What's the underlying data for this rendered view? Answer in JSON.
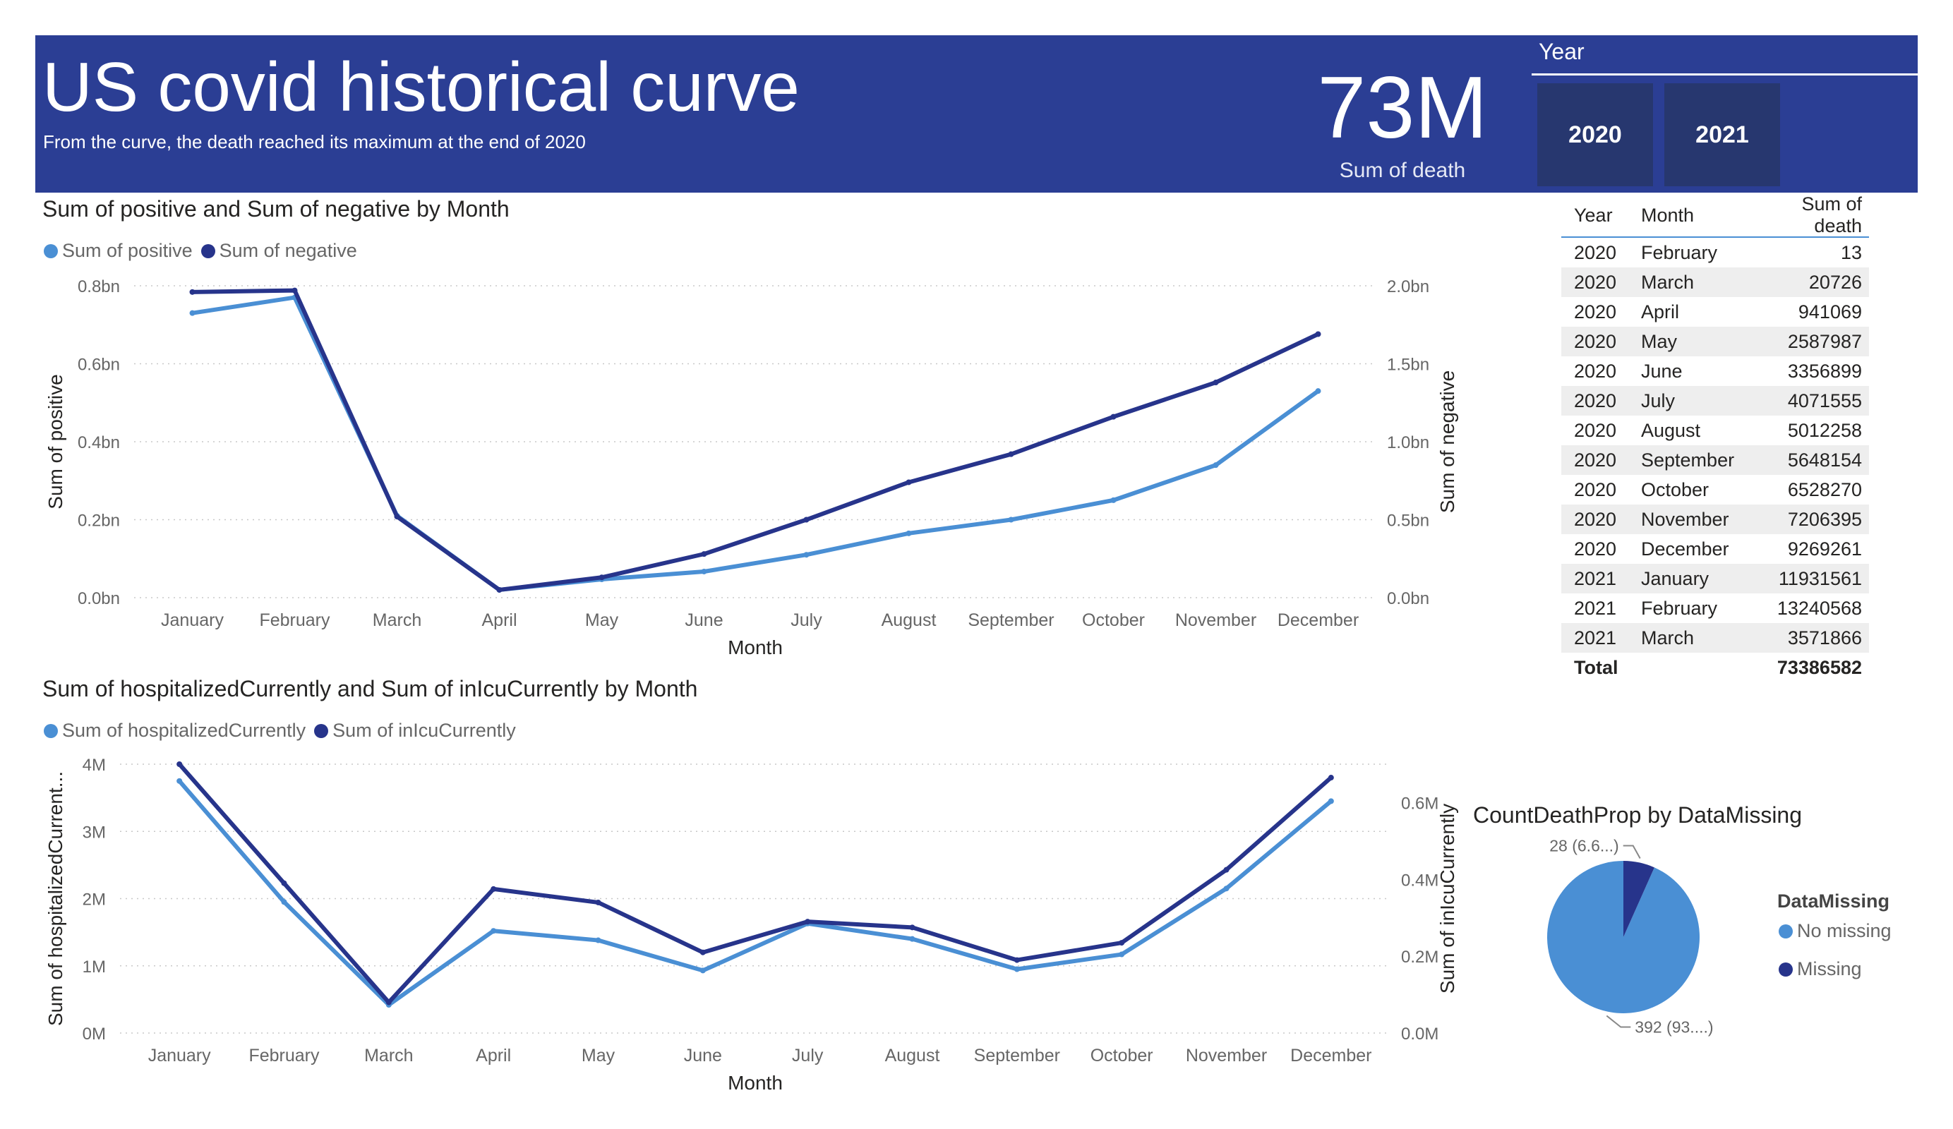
{
  "header": {
    "title": "US covid historical curve",
    "subtitle": "From the curve, the death reached its maximum at the end of 2020"
  },
  "kpi": {
    "value": "73M",
    "label": "Sum of death"
  },
  "slicer": {
    "label": "Year",
    "options": [
      "2020",
      "2021"
    ]
  },
  "colors": {
    "banner": "#2b3e94",
    "series_light": "#4a8fd4",
    "series_dark": "#27348b"
  },
  "table": {
    "headers": [
      "Year",
      "Month",
      "Sum of death"
    ],
    "rows": [
      [
        "2020",
        "February",
        "13"
      ],
      [
        "2020",
        "March",
        "20726"
      ],
      [
        "2020",
        "April",
        "941069"
      ],
      [
        "2020",
        "May",
        "2587987"
      ],
      [
        "2020",
        "June",
        "3356899"
      ],
      [
        "2020",
        "July",
        "4071555"
      ],
      [
        "2020",
        "August",
        "5012258"
      ],
      [
        "2020",
        "September",
        "5648154"
      ],
      [
        "2020",
        "October",
        "6528270"
      ],
      [
        "2020",
        "November",
        "7206395"
      ],
      [
        "2020",
        "December",
        "9269261"
      ],
      [
        "2021",
        "January",
        "11931561"
      ],
      [
        "2021",
        "February",
        "13240568"
      ],
      [
        "2021",
        "March",
        "3571866"
      ]
    ],
    "total_label": "Total",
    "total_value": "73386582"
  },
  "chart_data": [
    {
      "type": "line",
      "title": "Sum of positive and Sum of negative by Month",
      "xlabel": "Month",
      "ylabel": "Sum of positive",
      "y2label": "Sum of negative",
      "categories": [
        "January",
        "February",
        "March",
        "April",
        "May",
        "June",
        "July",
        "August",
        "September",
        "October",
        "November",
        "December"
      ],
      "y_ticks": [
        "0.0bn",
        "0.2bn",
        "0.4bn",
        "0.6bn",
        "0.8bn"
      ],
      "y2_ticks": [
        "0.0bn",
        "0.5bn",
        "1.0bn",
        "1.5bn",
        "2.0bn"
      ],
      "ylim": [
        0,
        0.8
      ],
      "y2lim": [
        0,
        2.0
      ],
      "legend_position": "top-left",
      "grid": true,
      "series": [
        {
          "name": "Sum of positive",
          "axis": "left",
          "color": "#4a8fd4",
          "values": [
            0.73,
            0.77,
            0.21,
            0.02,
            0.047,
            0.067,
            0.11,
            0.165,
            0.2,
            0.25,
            0.34,
            0.53
          ]
        },
        {
          "name": "Sum of negative",
          "axis": "right",
          "color": "#27348b",
          "values": [
            1.96,
            1.97,
            0.52,
            0.05,
            0.13,
            0.28,
            0.5,
            0.74,
            0.92,
            1.16,
            1.38,
            1.69
          ]
        }
      ]
    },
    {
      "type": "line",
      "title": "Sum of hospitalizedCurrently and Sum of inIcuCurrently by Month",
      "xlabel": "Month",
      "ylabel": "Sum of hospitalizedCurrent...",
      "y2label": "Sum of inIcuCurrently",
      "categories": [
        "January",
        "February",
        "March",
        "April",
        "May",
        "June",
        "July",
        "August",
        "September",
        "October",
        "November",
        "December"
      ],
      "y_ticks": [
        "0M",
        "1M",
        "2M",
        "3M",
        "4M"
      ],
      "y2_ticks": [
        "0.0M",
        "0.2M",
        "0.4M",
        "0.6M"
      ],
      "ylim": [
        0,
        4
      ],
      "y2lim": [
        0,
        0.7
      ],
      "legend_position": "top-left",
      "grid": true,
      "series": [
        {
          "name": "Sum of hospitalizedCurrently",
          "axis": "left",
          "color": "#4a8fd4",
          "values": [
            3.75,
            1.95,
            0.42,
            1.52,
            1.38,
            0.93,
            1.63,
            1.4,
            0.95,
            1.17,
            2.15,
            3.45
          ]
        },
        {
          "name": "Sum of inIcuCurrently",
          "axis": "right",
          "color": "#27348b",
          "values": [
            0.7,
            0.39,
            0.08,
            0.375,
            0.34,
            0.21,
            0.29,
            0.275,
            0.19,
            0.235,
            0.425,
            0.665
          ]
        }
      ]
    },
    {
      "type": "pie",
      "title": "CountDeathProp by DataMissing",
      "legend_title": "DataMissing",
      "legend_position": "right",
      "slices": [
        {
          "name": "No missing",
          "value": 392,
          "label": "392 (93....)",
          "color": "#4a8fd4"
        },
        {
          "name": "Missing",
          "value": 28,
          "label": "28 (6.6...)",
          "color": "#27348b"
        }
      ]
    }
  ]
}
